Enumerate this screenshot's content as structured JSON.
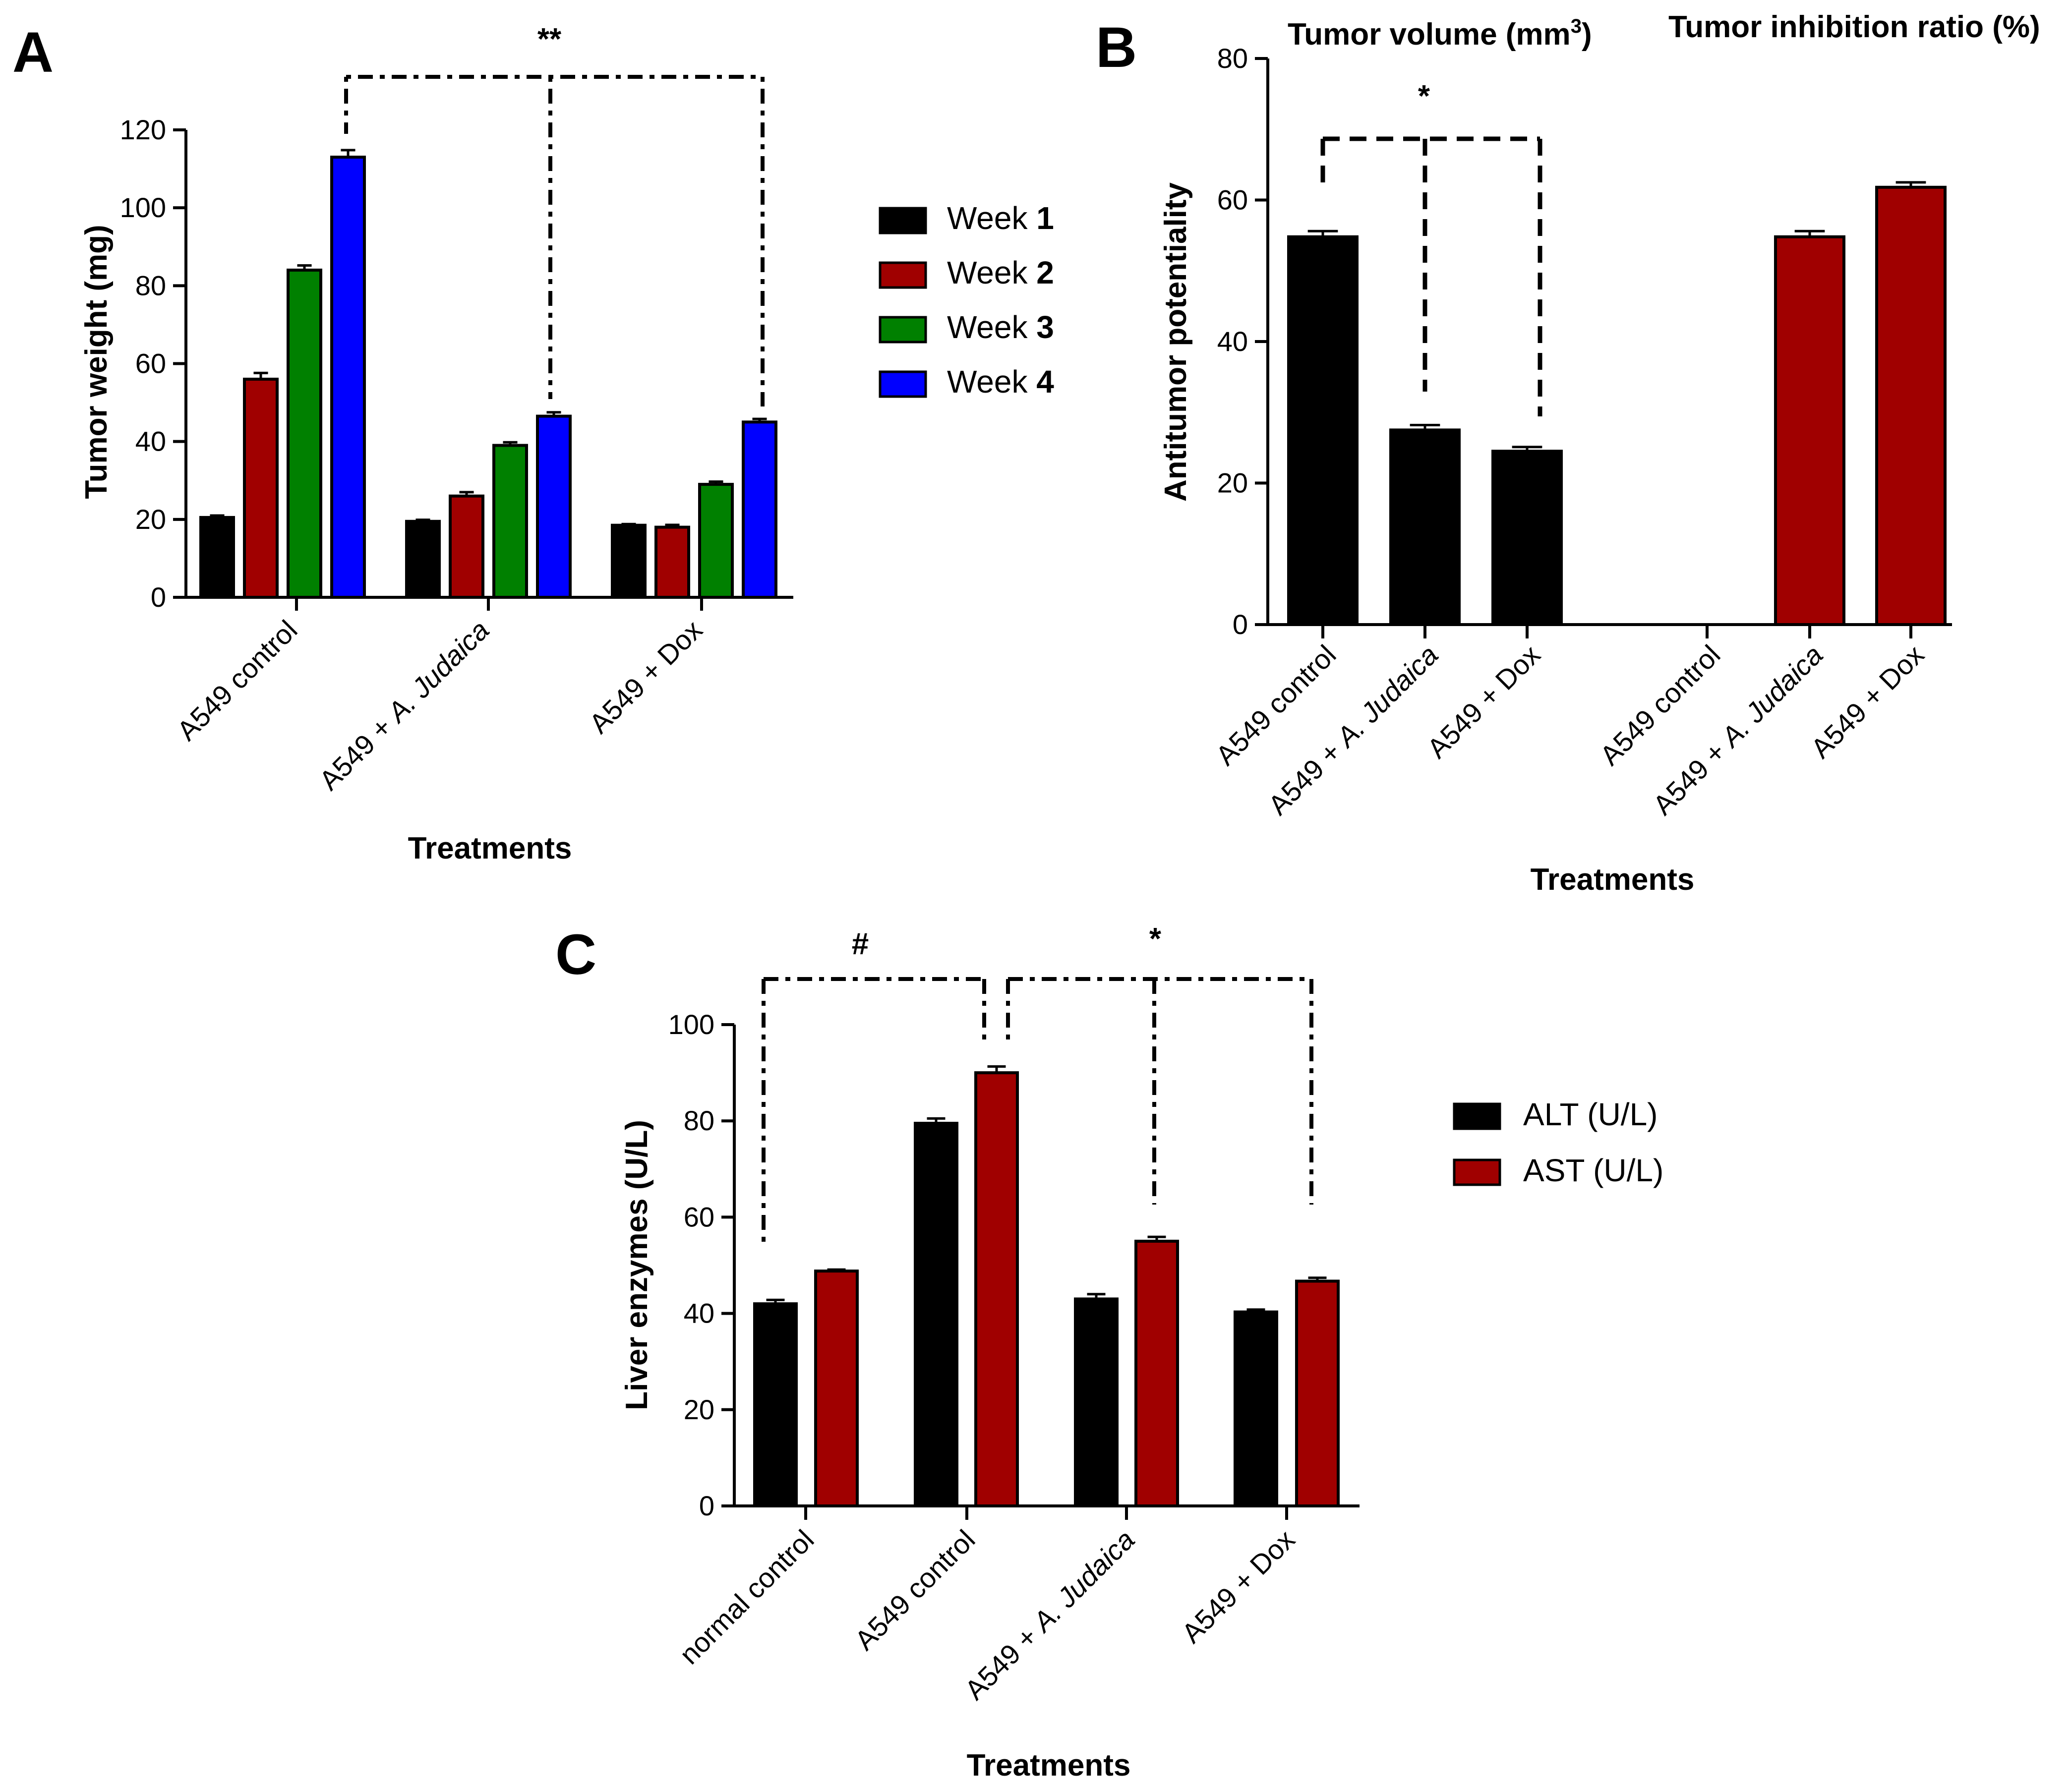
{
  "chart_data": [
    {
      "panel": "A",
      "type": "bar",
      "categories": [
        "A549 control",
        "A549 + A. Judaica",
        "A549 + Dox"
      ],
      "series": [
        {
          "name": "Week 1",
          "name_prefix": "Week ",
          "name_num": "1",
          "color": "#000000",
          "values": [
            20.5,
            19.5,
            18.5
          ],
          "errors": [
            0.5,
            0.4,
            0.3
          ]
        },
        {
          "name": "Week 2",
          "name_prefix": "Week ",
          "name_num": "2",
          "color": "#a00000",
          "values": [
            56,
            26,
            18
          ],
          "errors": [
            1.6,
            1.0,
            0.6
          ]
        },
        {
          "name": "Week 3",
          "name_prefix": "Week ",
          "name_num": "3",
          "color": "#008000",
          "values": [
            84,
            39,
            29
          ],
          "errors": [
            1.2,
            0.8,
            0.7
          ]
        },
        {
          "name": "Week 4",
          "name_prefix": "Week ",
          "name_num": "4",
          "color": "#0000ff",
          "values": [
            113,
            46.5,
            45
          ],
          "errors": [
            1.8,
            1.0,
            0.8
          ]
        }
      ],
      "yticks": [
        "0",
        "20",
        "40",
        "60",
        "80",
        "100",
        "120"
      ],
      "ylim": [
        0,
        120
      ],
      "ylabel": "Tumor weight (mg)",
      "xlabel": "Treatments",
      "significance": "**"
    },
    {
      "panel": "B",
      "type": "bar",
      "groups": [
        {
          "title_main": "Tumor volume (mm",
          "title_sup": "3",
          "title_close": ")",
          "color": "#000000",
          "categories": [
            "A549 control",
            "A549 + A. Judaica",
            "A549 + Dox"
          ],
          "values": [
            54.8,
            27.5,
            24.5
          ],
          "errors": [
            0.8,
            0.7,
            0.6
          ]
        },
        {
          "title": "Tumor inhibition ratio (%)",
          "color": "#a00000",
          "categories": [
            "A549 control",
            "A549 + A. Judaica",
            "A549 + Dox"
          ],
          "values": [
            0,
            54.8,
            61.8
          ],
          "errors": [
            0,
            0.8,
            0.7
          ]
        }
      ],
      "yticks": [
        "0",
        "20",
        "40",
        "60",
        "80"
      ],
      "ylim": [
        0,
        80
      ],
      "ylabel": "Antitumor potentiality",
      "xlabel": "Treatments",
      "significance": "*"
    },
    {
      "panel": "C",
      "type": "bar",
      "categories": [
        "normal control",
        "A549 control",
        "A549 + A. Judaica",
        "A549 + Dox"
      ],
      "series": [
        {
          "name": "ALT (U/L)",
          "color": "#000000",
          "values": [
            42,
            79.5,
            43,
            40.3
          ],
          "errors": [
            0.8,
            1.0,
            1.0,
            0.5
          ]
        },
        {
          "name": "AST (U/L)",
          "color": "#a00000",
          "values": [
            48.8,
            90,
            55,
            46.7
          ],
          "errors": [
            0.3,
            1.3,
            0.9,
            0.7
          ]
        }
      ],
      "yticks": [
        "0",
        "20",
        "40",
        "60",
        "80",
        "100"
      ],
      "ylim": [
        0,
        100
      ],
      "ylabel": "Liver enzymes (U/L)",
      "xlabel": "Treatments",
      "significance_left": "#",
      "significance_right": "*"
    }
  ],
  "panel_labels": {
    "a": "A",
    "b": "B",
    "c": "C"
  }
}
